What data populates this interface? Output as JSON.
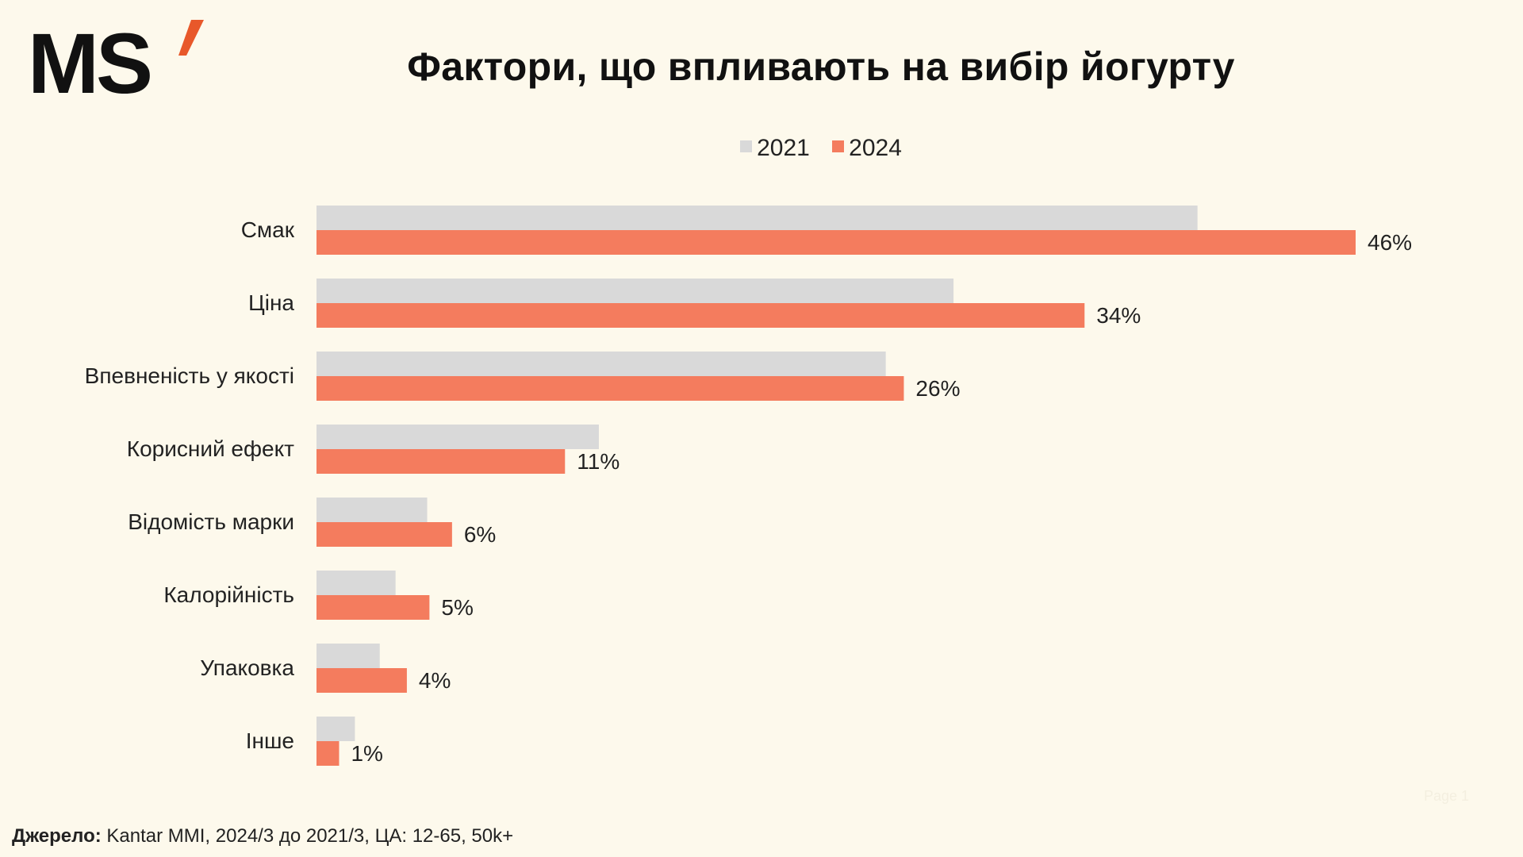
{
  "logo": {
    "text": "MS’",
    "primary_color": "#111111",
    "accent_color": "#E8582A"
  },
  "title": "Фактори, що впливають на вибір йогурту",
  "legend": [
    {
      "label": "2021",
      "color": "#D9D9D9"
    },
    {
      "label": "2024",
      "color": "#F47C5E"
    }
  ],
  "chart_data": {
    "type": "bar",
    "orientation": "horizontal",
    "categories": [
      "Смак",
      "Ціна",
      "Впевненість у якості",
      "Корисний ефект",
      "Відомість марки",
      "Калорійність",
      "Упаковка",
      "Інше"
    ],
    "series": [
      {
        "name": "2021",
        "values": [
          39,
          28.2,
          25.2,
          12.5,
          4.9,
          3.5,
          2.8,
          1.7
        ],
        "color": "#D9D9D9"
      },
      {
        "name": "2024",
        "values": [
          46,
          34,
          26,
          11,
          6,
          5,
          4,
          1
        ],
        "color": "#F47C5E",
        "data_labels": [
          "46%",
          "34%",
          "26%",
          "11%",
          "6%",
          "5%",
          "4%",
          "1%"
        ]
      }
    ],
    "xlim": [
      0,
      46
    ],
    "grid": false,
    "legend_position": "top-center"
  },
  "source": {
    "label": "Джерело:",
    "text": " Kantar MMI, 2024/3 до 2021/3, ЦА: 12-65, 50k+"
  },
  "page_label": "Page 1"
}
